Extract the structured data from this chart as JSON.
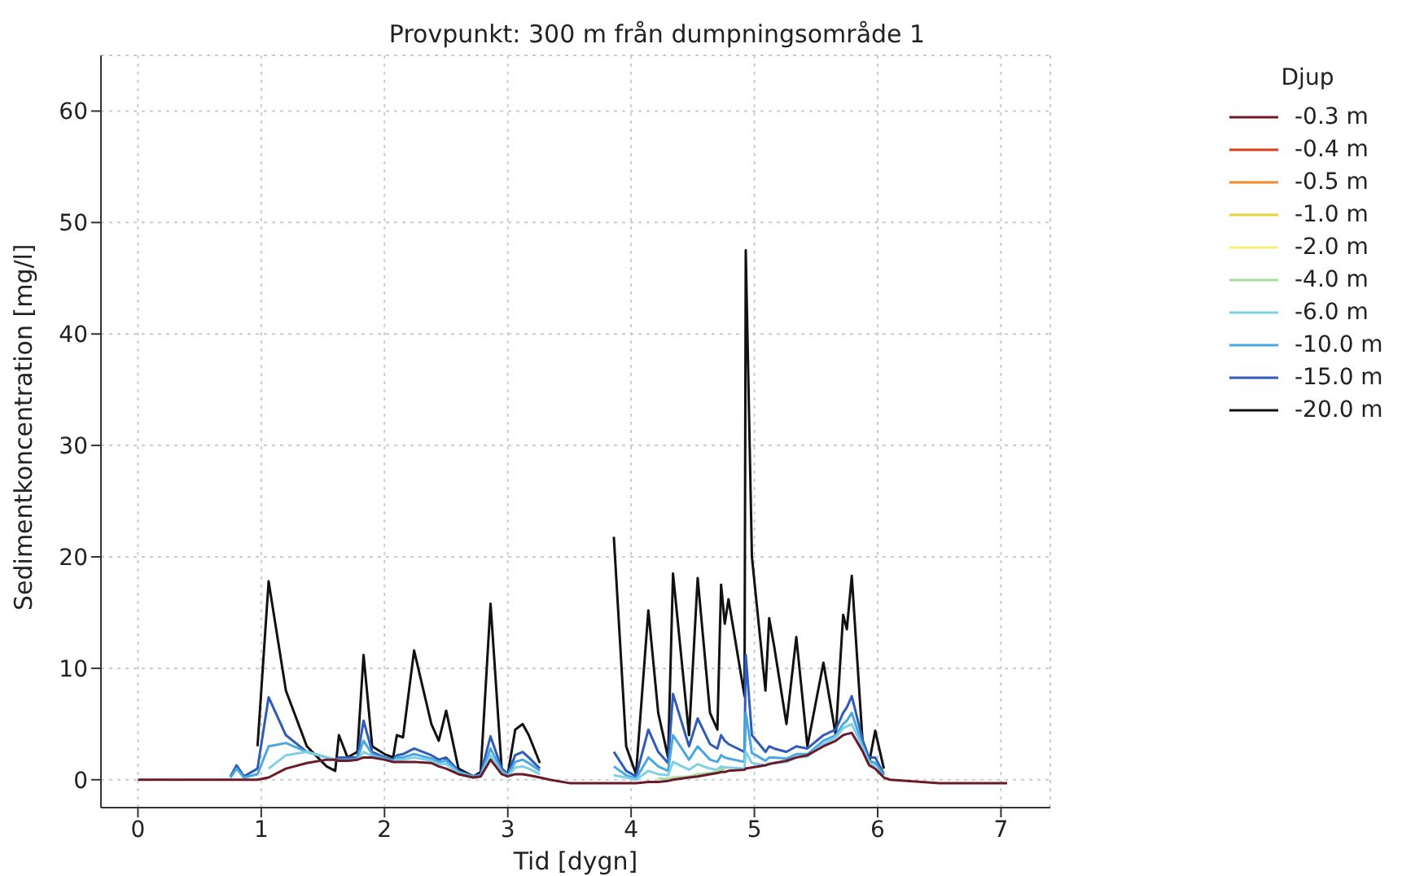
{
  "chart_data": {
    "type": "line",
    "title": "Provpunkt: 300 m från dumpningsområde 1",
    "xlabel": "Tid [dygn]",
    "ylabel": "Sedimentkoncentration [mg/l]",
    "legend_title": "Djup",
    "x": [
      0,
      0.6,
      0.65,
      0.75,
      0.8,
      0.86,
      0.97,
      1.06,
      1.2,
      1.37,
      1.53,
      1.6,
      1.63,
      1.7,
      1.78,
      1.83,
      1.9,
      2.0,
      2.07,
      2.1,
      2.15,
      2.24,
      2.38,
      2.44,
      2.5,
      2.6,
      2.72,
      2.78,
      2.86,
      2.95,
      3.0,
      3.06,
      3.12,
      3.17,
      3.26,
      3.34,
      3.5,
      3.84,
      3.86,
      3.96,
      4.04,
      4.14,
      4.22,
      4.3,
      4.34,
      4.47,
      4.54,
      4.64,
      4.7,
      4.73,
      4.76,
      4.79,
      4.92,
      4.93,
      4.98,
      5.09,
      5.12,
      5.16,
      5.26,
      5.34,
      5.43,
      5.56,
      5.66,
      5.72,
      5.75,
      5.79,
      5.88,
      5.93,
      5.98,
      6.05,
      6.1,
      6.5,
      7.0,
      7.05
    ],
    "series": [
      {
        "name": "-0.3 m",
        "color": "#6b1a2a",
        "values": [
          0,
          0,
          0,
          0,
          0,
          0,
          0,
          0.2,
          1,
          1.5,
          1.8,
          1.8,
          1.7,
          1.7,
          1.8,
          2,
          2,
          1.8,
          1.6,
          1.6,
          1.6,
          1.6,
          1.5,
          1.2,
          1,
          0.5,
          0.2,
          0.3,
          1.8,
          0.5,
          0.3,
          0.5,
          0.5,
          0.4,
          0.2,
          0,
          -0.3,
          -0.3,
          -0.3,
          -0.3,
          -0.3,
          -0.2,
          -0.2,
          -0.1,
          0,
          0.2,
          0.3,
          0.5,
          0.6,
          0.7,
          0.7,
          0.8,
          0.9,
          1,
          1.1,
          1.3,
          1.4,
          1.5,
          1.7,
          2,
          2.2,
          3,
          3.5,
          4,
          4.1,
          4.2,
          2.5,
          1.3,
          1,
          0.2,
          0,
          -0.3,
          -0.3,
          -0.3
        ]
      },
      {
        "name": "-0.4 m",
        "color": "#d9401f",
        "values": [
          null,
          null,
          null,
          null,
          null,
          null,
          null,
          null,
          null,
          null,
          null,
          null,
          null,
          null,
          null,
          null,
          null,
          null,
          null,
          null,
          null,
          null,
          null,
          null,
          null,
          null,
          null,
          null,
          null,
          null,
          null,
          null,
          null,
          null,
          null,
          null,
          null,
          null,
          null,
          null,
          null,
          null,
          null,
          null,
          null,
          null,
          null,
          null,
          null,
          null,
          null,
          null,
          null,
          null,
          null,
          null,
          null,
          null,
          null,
          null,
          null,
          null,
          null,
          null,
          null,
          null,
          null,
          null,
          null,
          null,
          null,
          null,
          null,
          null
        ]
      },
      {
        "name": "-0.5 m",
        "color": "#f08a2c",
        "values": [
          null,
          null,
          null,
          null,
          null,
          null,
          null,
          null,
          null,
          null,
          null,
          null,
          null,
          null,
          null,
          null,
          null,
          null,
          null,
          null,
          null,
          null,
          null,
          null,
          null,
          null,
          null,
          null,
          null,
          null,
          null,
          null,
          null,
          null,
          null,
          null,
          null,
          null,
          null,
          null,
          null,
          null,
          null,
          null,
          null,
          null,
          null,
          null,
          null,
          null,
          null,
          null,
          null,
          null,
          null,
          null,
          null,
          null,
          null,
          null,
          null,
          null,
          null,
          null,
          null,
          null,
          null,
          null,
          null,
          null,
          null,
          null,
          null,
          null
        ]
      },
      {
        "name": "-1.0 m",
        "color": "#e8d43a",
        "values": [
          null,
          null,
          null,
          null,
          null,
          null,
          null,
          null,
          null,
          null,
          null,
          null,
          null,
          null,
          null,
          null,
          null,
          null,
          null,
          null,
          null,
          null,
          null,
          null,
          null,
          null,
          null,
          null,
          null,
          null,
          null,
          null,
          null,
          null,
          null,
          null,
          null,
          null,
          null,
          null,
          null,
          null,
          null,
          null,
          null,
          null,
          null,
          null,
          null,
          null,
          null,
          null,
          null,
          null,
          null,
          null,
          null,
          null,
          null,
          null,
          null,
          null,
          null,
          null,
          null,
          null,
          null,
          null,
          null,
          null,
          null,
          null,
          null,
          null
        ]
      },
      {
        "name": "-2.0 m",
        "color": "#f4f07a",
        "values": [
          null,
          null,
          null,
          null,
          null,
          null,
          null,
          null,
          null,
          null,
          null,
          null,
          null,
          null,
          null,
          null,
          null,
          null,
          null,
          null,
          null,
          null,
          null,
          null,
          null,
          null,
          null,
          null,
          null,
          null,
          null,
          null,
          null,
          null,
          null,
          null,
          null,
          null,
          null,
          null,
          null,
          null,
          null,
          null,
          null,
          null,
          null,
          null,
          null,
          null,
          null,
          null,
          null,
          null,
          null,
          null,
          null,
          null,
          null,
          null,
          null,
          null,
          null,
          null,
          null,
          null,
          null,
          null,
          null,
          null,
          null,
          null,
          null,
          null
        ]
      },
      {
        "name": "-4.0 m",
        "color": "#a8dca0",
        "values": [
          null,
          null,
          null,
          null,
          null,
          null,
          null,
          null,
          null,
          null,
          null,
          null,
          null,
          null,
          null,
          null,
          null,
          null,
          null,
          null,
          null,
          null,
          null,
          null,
          null,
          null,
          null,
          null,
          null,
          null,
          null,
          null,
          null,
          null,
          null,
          null,
          null,
          null,
          null,
          null,
          null,
          null,
          0.1,
          0.1,
          0.2,
          0.3,
          0.5,
          0.6,
          0.8,
          0.9,
          1.0,
          null,
          null,
          null,
          null,
          null,
          null,
          null,
          null,
          null,
          null,
          null,
          null,
          null,
          null,
          null,
          null,
          null,
          null,
          null,
          null,
          null,
          null,
          null
        ]
      },
      {
        "name": "-6.0 m",
        "color": "#7fd0e6",
        "values": [
          null,
          null,
          null,
          null,
          null,
          null,
          null,
          1,
          2.2,
          2.5,
          2,
          1.8,
          1.7,
          1.7,
          1.8,
          2.5,
          2.1,
          1.8,
          1.6,
          1.8,
          1.8,
          2,
          1.7,
          1.4,
          1.4,
          0.6,
          0.2,
          0.3,
          2.2,
          0.6,
          0.3,
          1.1,
          1.2,
          1,
          0.5,
          null,
          null,
          null,
          0.4,
          0.2,
          0,
          0.8,
          0.5,
          0.4,
          1.6,
          0.9,
          1.4,
          1,
          0.9,
          1.2,
          1.1,
          1.1,
          1,
          2.5,
          1.5,
          1.3,
          1.5,
          1.5,
          1.6,
          2,
          2.1,
          3.2,
          3.8,
          4.6,
          4.8,
          5,
          2.8,
          1.5,
          1.2,
          null,
          null,
          null,
          null,
          null
        ]
      },
      {
        "name": "-10.0 m",
        "color": "#4aa8e0",
        "values": [
          null,
          null,
          null,
          0.2,
          1,
          0.2,
          0.5,
          3,
          3.3,
          2.5,
          2,
          1.8,
          1.8,
          1.8,
          1.9,
          3.5,
          2.3,
          1.9,
          1.7,
          2,
          2,
          2.3,
          1.9,
          1.6,
          1.7,
          0.7,
          0.3,
          0.4,
          2.8,
          0.8,
          0.4,
          1.6,
          1.8,
          1.5,
          0.8,
          null,
          null,
          null,
          1.2,
          0.4,
          0.1,
          2,
          1.2,
          0.8,
          4,
          1.8,
          3,
          1.8,
          1.6,
          2.2,
          2,
          1.9,
          1.6,
          6,
          2.4,
          1.7,
          2,
          2,
          1.9,
          2.3,
          2.3,
          3.5,
          4,
          5,
          5.3,
          6,
          3,
          1.7,
          1.5,
          0.4,
          null,
          null,
          null,
          null
        ]
      },
      {
        "name": "-15.0 m",
        "color": "#2e5cb8",
        "values": [
          null,
          null,
          null,
          0.3,
          1.3,
          0.3,
          1,
          7.4,
          4,
          2.5,
          2,
          1.8,
          2,
          2,
          2,
          5.3,
          2.5,
          2,
          1.8,
          2.2,
          2.3,
          2.8,
          2.2,
          1.8,
          2,
          0.8,
          0.3,
          0.5,
          3.9,
          1,
          0.5,
          2.2,
          2.5,
          2,
          1,
          null,
          null,
          null,
          2.5,
          0.8,
          0.3,
          4.5,
          2.5,
          1.5,
          7.7,
          3,
          5.5,
          3.2,
          2.8,
          4,
          3.5,
          3.2,
          2.5,
          11.2,
          4,
          2.5,
          3,
          2.8,
          2.5,
          3,
          2.8,
          4,
          4.5,
          6,
          6.5,
          7.5,
          3.5,
          2,
          2,
          0.5,
          null,
          null,
          null,
          null
        ]
      },
      {
        "name": "-20.0 m",
        "color": "#111111",
        "values": [
          null,
          null,
          null,
          null,
          null,
          null,
          3,
          17.8,
          8,
          3,
          1.2,
          0.8,
          4,
          2,
          2.5,
          11.2,
          3,
          2.3,
          2,
          4,
          3.8,
          11.6,
          5,
          3.5,
          6.2,
          1,
          0.3,
          0.7,
          15.8,
          1,
          0.5,
          4.5,
          5,
          4,
          1.5,
          null,
          null,
          null,
          21.8,
          3,
          0.5,
          15.2,
          6,
          2,
          18.5,
          4,
          18.1,
          6,
          4.5,
          17.5,
          14,
          16.2,
          7.5,
          47.5,
          20,
          8,
          14.5,
          12,
          5,
          12.8,
          3,
          10.5,
          4,
          14.8,
          13.5,
          18.3,
          3,
          1.5,
          4.4,
          1,
          null,
          null,
          null,
          null
        ]
      }
    ],
    "xlim": [
      -0.3,
      7.4
    ],
    "xticks": [
      0,
      1,
      2,
      3,
      4,
      5,
      6,
      7
    ],
    "ylim": [
      -2.5,
      65
    ],
    "yticks": [
      0,
      10,
      20,
      30,
      40,
      50,
      60
    ],
    "grid": true,
    "legend": "right",
    "marker": "none",
    "line_style": "solid"
  }
}
